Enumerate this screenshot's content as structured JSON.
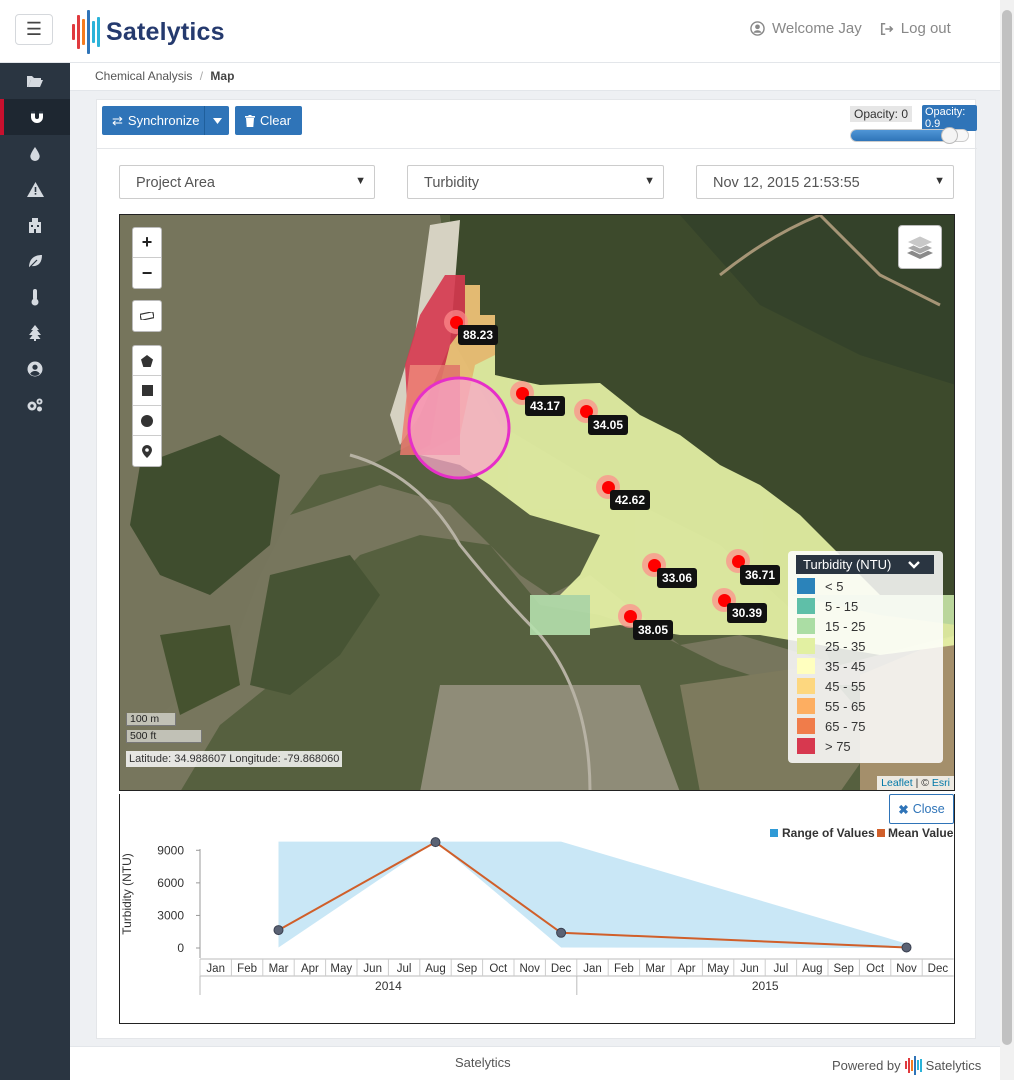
{
  "header": {
    "brand": "Satelytics",
    "welcome": "Welcome Jay",
    "logout": "Log out"
  },
  "sidebar": {
    "items": [
      {
        "icon": "folder-open-icon"
      },
      {
        "icon": "magnet-icon",
        "active": true
      },
      {
        "icon": "droplet-icon"
      },
      {
        "icon": "warning-icon"
      },
      {
        "icon": "factory-icon"
      },
      {
        "icon": "leaf-icon"
      },
      {
        "icon": "thermometer-icon"
      },
      {
        "icon": "tree-icon"
      },
      {
        "icon": "user-circle-icon"
      },
      {
        "icon": "gears-icon"
      }
    ]
  },
  "breadcrumb": {
    "parent": "Chemical Analysis",
    "separator": "/",
    "current": "Map"
  },
  "toolbar": {
    "synchronize": "Synchronize",
    "clear": "Clear",
    "opacity_min": "Opacity: 0",
    "opacity_max": "Opacity: 0.9",
    "opacity_value": 0.9
  },
  "selects": {
    "area": "Project Area",
    "parameter": "Turbidity",
    "date": "Nov 12, 2015 21:53:55"
  },
  "map": {
    "zoom_in": "+",
    "zoom_out": "−",
    "markers": [
      {
        "label": "88.23"
      },
      {
        "label": "43.17"
      },
      {
        "label": "34.05"
      },
      {
        "label": "42.62"
      },
      {
        "label": "33.06"
      },
      {
        "label": "36.71"
      },
      {
        "label": "30.39"
      },
      {
        "label": "38.05"
      }
    ],
    "scale_m": "100 m",
    "scale_ft": "500 ft",
    "coords": "Latitude: 34.988607 Longitude: -79.868060",
    "attribution_leaflet": "Leaflet",
    "attribution_sep": " | © ",
    "attribution_esri": "Esri"
  },
  "legend": {
    "title": "Turbidity (NTU)",
    "items": [
      {
        "label": "< 5",
        "color": "#2b83ba"
      },
      {
        "label": "5 - 15",
        "color": "#5fbfa8"
      },
      {
        "label": "15 - 25",
        "color": "#abdda4"
      },
      {
        "label": "25 - 35",
        "color": "#e2f0a2"
      },
      {
        "label": "35 - 45",
        "color": "#ffffbf"
      },
      {
        "label": "45 - 55",
        "color": "#fdd77f"
      },
      {
        "label": "55 - 65",
        "color": "#fdae61"
      },
      {
        "label": "65 - 75",
        "color": "#f07c4a"
      },
      {
        "label": "> 75",
        "color": "#d7384f"
      }
    ]
  },
  "chart_close": "Close",
  "chart_data": {
    "type": "area",
    "ylabel": "Turbidity (NTU)",
    "yticks": [
      0,
      3000,
      6000,
      9000
    ],
    "ylim": [
      0,
      10500
    ],
    "x_axis_months": [
      "Jan",
      "Feb",
      "Mar",
      "Apr",
      "May",
      "Jun",
      "Jul",
      "Aug",
      "Sep",
      "Oct",
      "Nov",
      "Dec",
      "Jan",
      "Feb",
      "Mar",
      "Apr",
      "May",
      "Jun",
      "Jul",
      "Aug",
      "Sep",
      "Oct",
      "Nov",
      "Dec"
    ],
    "x_axis_years": [
      "2014",
      "2015"
    ],
    "legend_placement": "top-right",
    "series": [
      {
        "name": "Range of Values",
        "color": "#c6e6f5",
        "x": [
          "2014-03",
          "2014-08",
          "2014-12",
          "2015-11"
        ],
        "low": [
          50,
          9800,
          50,
          0
        ],
        "high": [
          9800,
          9800,
          9800,
          400
        ]
      },
      {
        "name": "Mean Value",
        "color": "#d05f2a",
        "x": [
          "2014-03",
          "2014-08",
          "2014-12",
          "2015-11"
        ],
        "values": [
          1650,
          9750,
          1400,
          50
        ]
      }
    ]
  },
  "footer": {
    "center": "Satelytics",
    "powered_by": "Powered by",
    "brand": "Satelytics"
  }
}
